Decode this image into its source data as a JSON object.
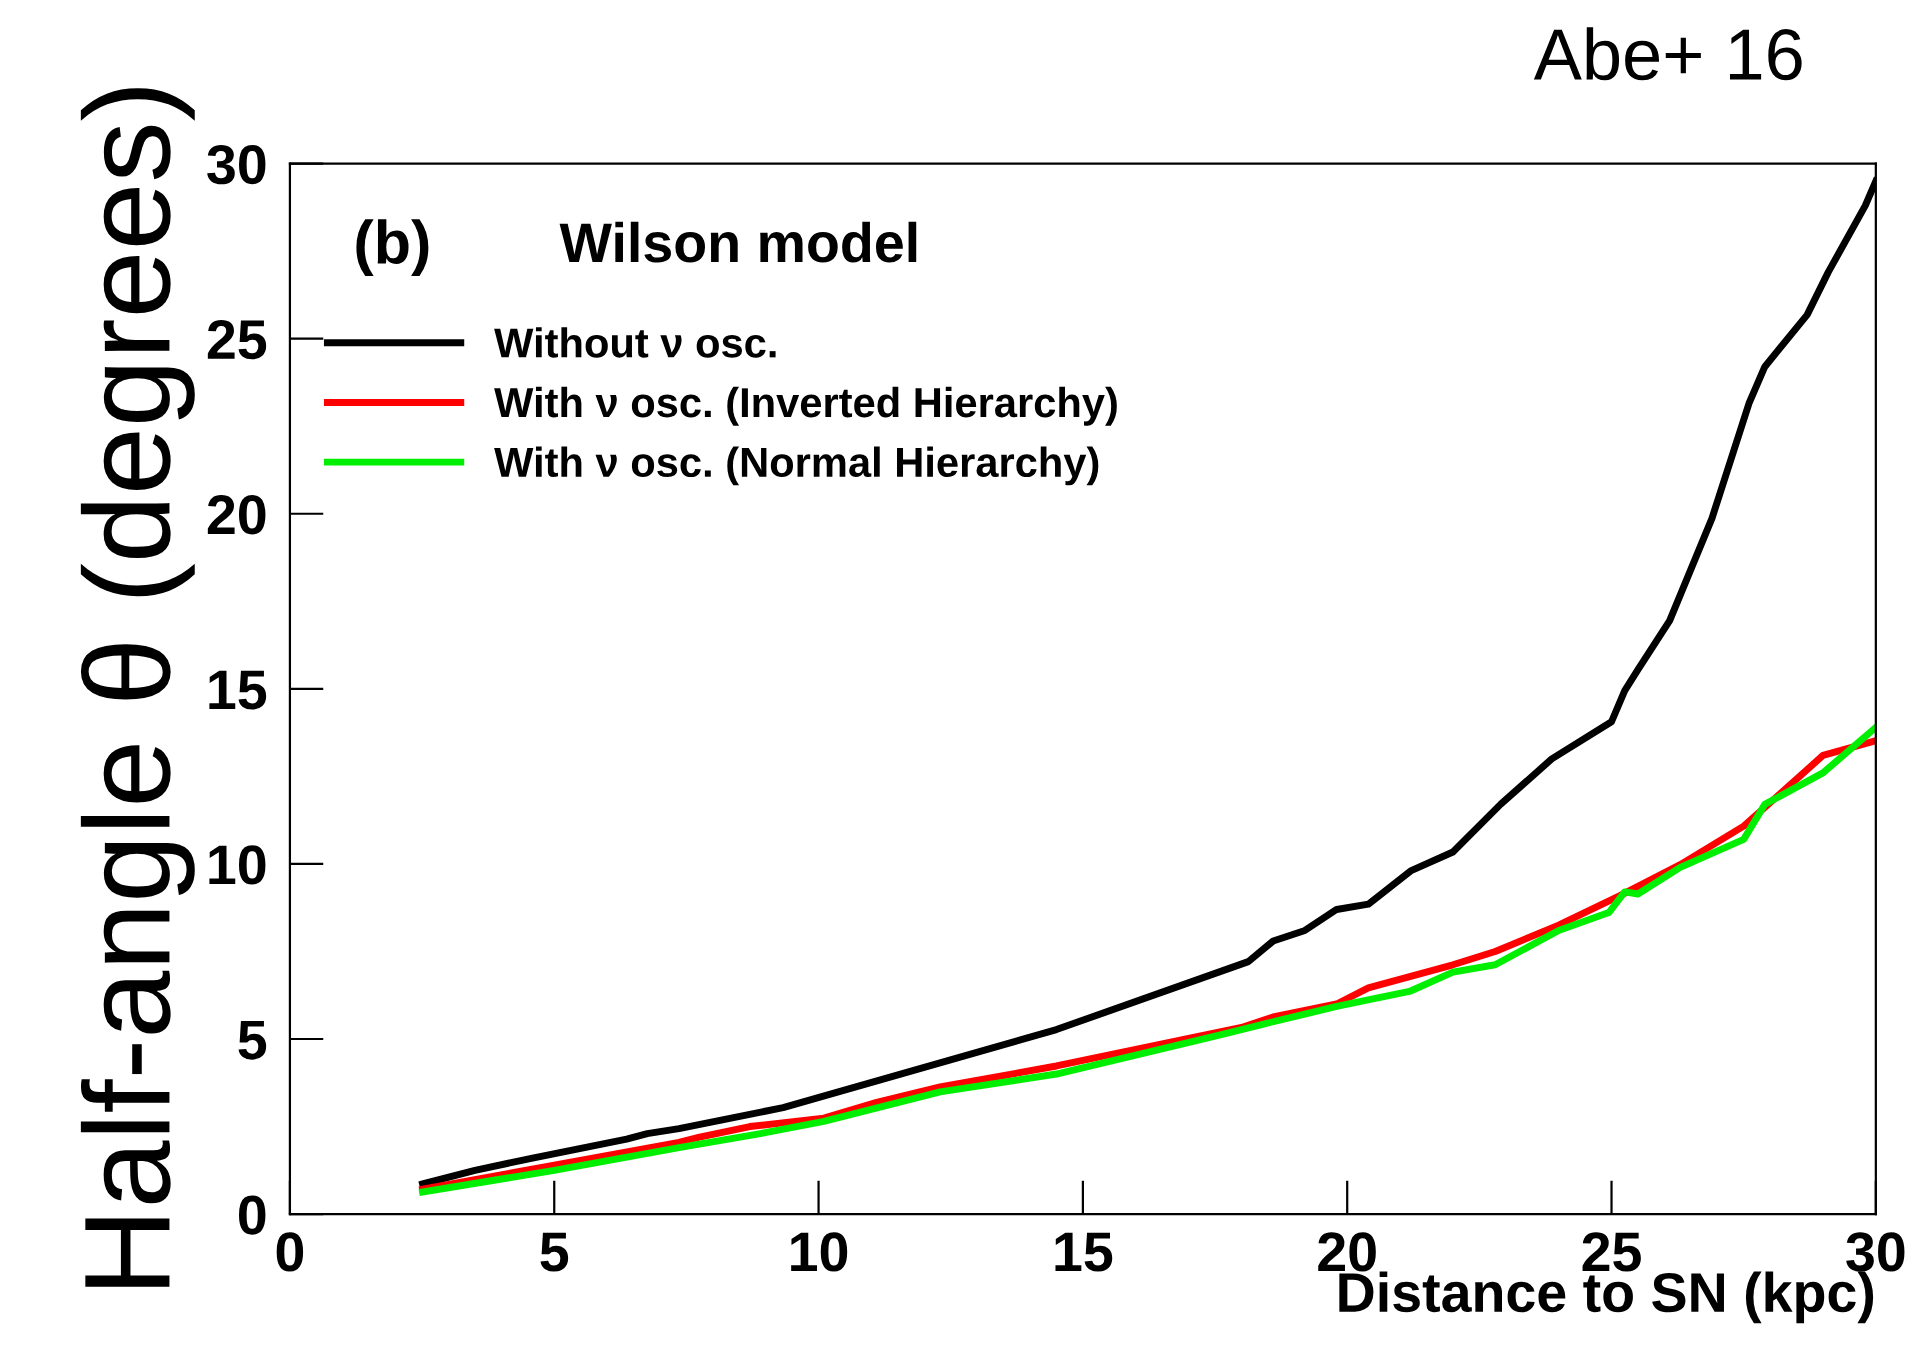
{
  "chart_data": {
    "type": "line",
    "xlabel": "Distance to SN (kpc)",
    "ylabel": "Half-angle θ (degrees)",
    "annotations": [
      "(b)",
      "Wilson model",
      "Abe+ 16"
    ],
    "xlim": [
      0,
      30
    ],
    "ylim": [
      0,
      30
    ],
    "xticks": [
      0,
      5,
      10,
      15,
      20,
      25,
      30
    ],
    "yticks": [
      0,
      5,
      10,
      15,
      20,
      25,
      30
    ],
    "grid": false,
    "legend": "top left",
    "line_style": "solid",
    "marker": "none",
    "series": [
      {
        "name": "Without ν osc.",
        "color": "#000000",
        "x": [
          2.51,
          3.5,
          4.59,
          6.37,
          6.76,
          7.36,
          9.33,
          14.5,
          18.13,
          18.6,
          19.2,
          19.8,
          20.4,
          21.2,
          22.0,
          22.9,
          23.87,
          25.0,
          25.25,
          25.5,
          26.1,
          26.9,
          27.6,
          27.9,
          28.7,
          29.1,
          29.8,
          30.0
        ],
        "values": [
          0.86,
          1.25,
          1.6,
          2.14,
          2.3,
          2.44,
          3.04,
          5.27,
          7.21,
          7.8,
          8.1,
          8.7,
          8.85,
          9.8,
          10.34,
          11.7,
          13.0,
          14.06,
          14.95,
          15.55,
          16.95,
          19.87,
          23.15,
          24.2,
          25.68,
          26.9,
          28.8,
          29.5
        ]
      },
      {
        "name": "With ν osc. (Inverted Hierarchy)",
        "color": "#ff0000",
        "x": [
          2.51,
          5.0,
          7.36,
          7.75,
          8.7,
          10.1,
          11.1,
          12.3,
          14.5,
          18.0,
          18.6,
          19.8,
          20.4,
          22.0,
          22.8,
          24.0,
          25.15,
          26.3,
          27.5,
          28.5,
          29.0,
          30.0
        ],
        "values": [
          0.71,
          1.4,
          2.05,
          2.2,
          2.5,
          2.74,
          3.19,
          3.63,
          4.23,
          5.33,
          5.63,
          6.0,
          6.46,
          7.12,
          7.5,
          8.25,
          9.09,
          9.98,
          11.08,
          12.42,
          13.1,
          13.52
        ]
      },
      {
        "name": "With ν osc. (Normal Hierarchy)",
        "color": "#00ee00",
        "x": [
          2.51,
          5.0,
          7.36,
          8.9,
          10.1,
          12.3,
          14.5,
          17.6,
          18.4,
          19.8,
          21.2,
          22.0,
          22.8,
          24.0,
          24.95,
          25.25,
          25.5,
          26.3,
          27.5,
          27.9,
          29.0,
          30.0
        ],
        "values": [
          0.63,
          1.25,
          1.9,
          2.3,
          2.65,
          3.49,
          4.0,
          5.12,
          5.42,
          5.93,
          6.37,
          6.91,
          7.12,
          8.1,
          8.61,
          9.2,
          9.14,
          9.9,
          10.7,
          11.7,
          12.6,
          13.9
        ]
      }
    ]
  }
}
